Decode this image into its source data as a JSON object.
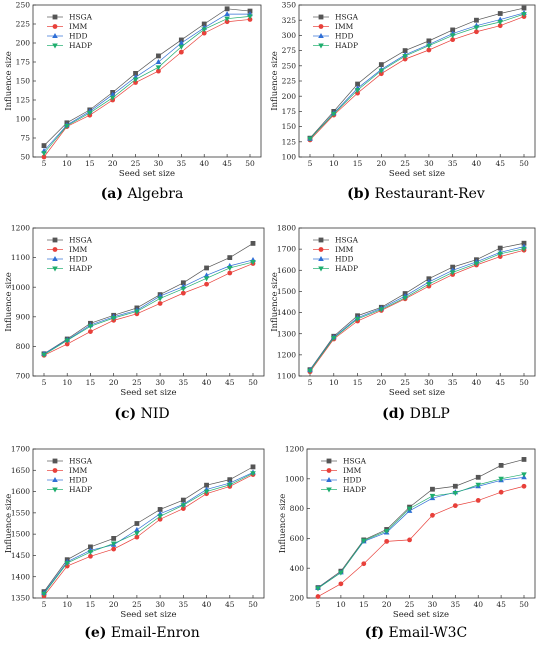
{
  "legend": [
    "HSGA",
    "IMM",
    "HDD",
    "HADP"
  ],
  "colors": {
    "HSGA": "#555555",
    "IMM": "#e8403a",
    "HDD": "#2f6fd6",
    "HADP": "#1fae6e"
  },
  "markers": {
    "HSGA": "square",
    "IMM": "circle",
    "HDD": "triangle-up",
    "HADP": "triangle-down"
  },
  "chart_data": [
    {
      "type": "line",
      "caption_letter": "(a)",
      "caption_name": "Algebra",
      "xlabel": "Seed set size",
      "ylabel": "Influence size",
      "categories": [
        "5",
        "10",
        "15",
        "20",
        "25",
        "30",
        "35",
        "40",
        "45",
        "50"
      ],
      "ylim": [
        50,
        250
      ],
      "yticks": [
        50,
        75,
        100,
        125,
        150,
        175,
        200,
        225,
        250
      ],
      "series": [
        {
          "name": "HSGA",
          "values": [
            65,
            95,
            112,
            135,
            160,
            183,
            204,
            225,
            245,
            242
          ]
        },
        {
          "name": "IMM",
          "values": [
            50,
            90,
            105,
            125,
            148,
            163,
            188,
            213,
            228,
            231
          ]
        },
        {
          "name": "HDD",
          "values": [
            58,
            92,
            110,
            132,
            155,
            175,
            200,
            220,
            238,
            238
          ]
        },
        {
          "name": "HADP",
          "values": [
            55,
            91,
            108,
            128,
            152,
            168,
            195,
            218,
            232,
            235
          ]
        }
      ]
    },
    {
      "type": "line",
      "caption_letter": "(b)",
      "caption_name": "Restaurant-Rev",
      "xlabel": "Seed set size",
      "ylabel": "Influence size",
      "categories": [
        "5",
        "10",
        "15",
        "20",
        "25",
        "30",
        "35",
        "40",
        "45",
        "50"
      ],
      "ylim": [
        100,
        350
      ],
      "yticks": [
        100,
        125,
        150,
        175,
        200,
        225,
        250,
        275,
        300,
        325,
        350
      ],
      "series": [
        {
          "name": "HSGA",
          "values": [
            131,
            175,
            220,
            252,
            275,
            291,
            309,
            325,
            336,
            345
          ]
        },
        {
          "name": "IMM",
          "values": [
            128,
            169,
            205,
            237,
            261,
            276,
            293,
            306,
            316,
            331
          ]
        },
        {
          "name": "HDD",
          "values": [
            130,
            172,
            213,
            244,
            268,
            285,
            303,
            316,
            326,
            337
          ]
        },
        {
          "name": "HADP",
          "values": [
            130,
            171,
            210,
            242,
            266,
            283,
            300,
            313,
            322,
            335
          ]
        }
      ]
    },
    {
      "type": "line",
      "caption_letter": "(c)",
      "caption_name": "NID",
      "xlabel": "Seed set size",
      "ylabel": "Influence size",
      "categories": [
        "5",
        "10",
        "15",
        "20",
        "25",
        "30",
        "35",
        "40",
        "45",
        "50"
      ],
      "ylim": [
        700,
        1200
      ],
      "yticks": [
        700,
        800,
        900,
        1000,
        1100,
        1200
      ],
      "series": [
        {
          "name": "HSGA",
          "values": [
            775,
            825,
            878,
            905,
            930,
            975,
            1015,
            1065,
            1100,
            1148
          ]
        },
        {
          "name": "IMM",
          "values": [
            770,
            808,
            850,
            888,
            910,
            945,
            980,
            1010,
            1048,
            1080
          ]
        },
        {
          "name": "HDD",
          "values": [
            775,
            822,
            872,
            900,
            922,
            970,
            1002,
            1040,
            1072,
            1092
          ]
        },
        {
          "name": "HADP",
          "values": [
            772,
            820,
            868,
            896,
            918,
            962,
            995,
            1030,
            1065,
            1085
          ]
        }
      ]
    },
    {
      "type": "line",
      "caption_letter": "(d)",
      "caption_name": "DBLP",
      "xlabel": "Seed set size",
      "ylabel": "Influence size",
      "categories": [
        "5",
        "10",
        "15",
        "20",
        "25",
        "30",
        "35",
        "40",
        "45",
        "50"
      ],
      "ylim": [
        1100,
        1800
      ],
      "yticks": [
        1100,
        1200,
        1300,
        1400,
        1500,
        1600,
        1700,
        1800
      ],
      "series": [
        {
          "name": "HSGA",
          "values": [
            1130,
            1288,
            1385,
            1425,
            1490,
            1560,
            1615,
            1650,
            1705,
            1728
          ]
        },
        {
          "name": "IMM",
          "values": [
            1120,
            1275,
            1360,
            1410,
            1465,
            1525,
            1580,
            1625,
            1665,
            1695
          ]
        },
        {
          "name": "HDD",
          "values": [
            1128,
            1283,
            1375,
            1420,
            1478,
            1545,
            1600,
            1640,
            1685,
            1712
          ]
        },
        {
          "name": "HADP",
          "values": [
            1125,
            1280,
            1370,
            1415,
            1470,
            1535,
            1590,
            1632,
            1678,
            1702
          ]
        }
      ]
    },
    {
      "type": "line",
      "caption_letter": "(e)",
      "caption_name": "Email-Enron",
      "xlabel": "Seed set size",
      "ylabel": "Influence size",
      "categories": [
        "5",
        "10",
        "15",
        "20",
        "25",
        "30",
        "35",
        "40",
        "45",
        "50"
      ],
      "ylim": [
        1350,
        1700
      ],
      "yticks": [
        1350,
        1400,
        1450,
        1500,
        1550,
        1600,
        1650,
        1700
      ],
      "series": [
        {
          "name": "HSGA",
          "values": [
            1365,
            1440,
            1470,
            1490,
            1525,
            1558,
            1580,
            1615,
            1628,
            1658
          ]
        },
        {
          "name": "IMM",
          "values": [
            1355,
            1425,
            1448,
            1465,
            1493,
            1535,
            1560,
            1595,
            1612,
            1640
          ]
        },
        {
          "name": "HDD",
          "values": [
            1362,
            1435,
            1462,
            1475,
            1510,
            1548,
            1570,
            1605,
            1620,
            1645
          ]
        },
        {
          "name": "HADP",
          "values": [
            1360,
            1432,
            1458,
            1478,
            1502,
            1542,
            1568,
            1600,
            1616,
            1643
          ]
        }
      ]
    },
    {
      "type": "line",
      "caption_letter": "(f)",
      "caption_name": "Email-W3C",
      "xlabel": "Seed set size",
      "ylabel": "Influence size",
      "categories": [
        "5",
        "10",
        "15",
        "20",
        "25",
        "30",
        "35",
        "40",
        "45",
        "50"
      ],
      "ylim": [
        200,
        1200
      ],
      "yticks": [
        200,
        400,
        600,
        800,
        1000,
        1200
      ],
      "series": [
        {
          "name": "HSGA",
          "values": [
            270,
            380,
            590,
            660,
            810,
            930,
            950,
            1010,
            1090,
            1130
          ]
        },
        {
          "name": "IMM",
          "values": [
            210,
            295,
            430,
            580,
            590,
            755,
            820,
            855,
            910,
            950
          ]
        },
        {
          "name": "HDD",
          "values": [
            268,
            372,
            580,
            640,
            785,
            870,
            910,
            950,
            990,
            1010
          ]
        },
        {
          "name": "HADP",
          "values": [
            265,
            370,
            585,
            650,
            800,
            885,
            905,
            960,
            1000,
            1030
          ]
        }
      ]
    }
  ]
}
